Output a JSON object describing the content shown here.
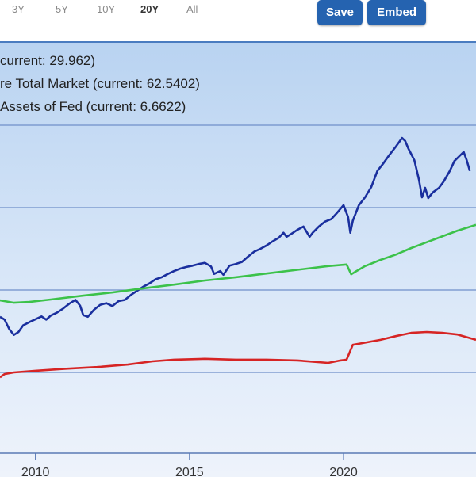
{
  "range_selector": {
    "options": [
      {
        "label": "3Y",
        "active": false
      },
      {
        "label": "5Y",
        "active": false
      },
      {
        "label": "10Y",
        "active": false
      },
      {
        "label": "20Y",
        "active": true
      },
      {
        "label": "All",
        "active": false
      }
    ]
  },
  "toolbar": {
    "save_label": "Save",
    "embed_label": "Embed"
  },
  "legend": [
    "current: 29.962)",
    "re Total Market (current: 62.5402)",
    "Assets of Fed (current: 6.6622)"
  ],
  "colors": {
    "button_bg": "#2563b0",
    "series_blue": "#1a2f9e",
    "series_green": "#3cc24a",
    "series_red": "#d62424",
    "gridline": "#6f8fc9"
  },
  "chart_data": {
    "type": "line",
    "xlabel": "",
    "ylabel": "",
    "xlim": [
      2008.85,
      2024.3
    ],
    "ylim": [
      0,
      100
    ],
    "y_gridlines": [
      20,
      40,
      60,
      80
    ],
    "grid": true,
    "x_ticks": [
      {
        "value": 2010,
        "label": "2010"
      },
      {
        "value": 2015,
        "label": "2015"
      },
      {
        "value": 2020,
        "label": "2020"
      }
    ],
    "series": [
      {
        "color": "#1a2f9e",
        "points": [
          [
            2008.85,
            33.5
          ],
          [
            2009.0,
            32.8
          ],
          [
            2009.15,
            30.5
          ],
          [
            2009.3,
            29.1
          ],
          [
            2009.45,
            29.8
          ],
          [
            2009.6,
            31.4
          ],
          [
            2009.8,
            32.2
          ],
          [
            2010.0,
            32.9
          ],
          [
            2010.2,
            33.6
          ],
          [
            2010.35,
            32.8
          ],
          [
            2010.5,
            33.8
          ],
          [
            2010.7,
            34.5
          ],
          [
            2010.9,
            35.5
          ],
          [
            2011.1,
            36.7
          ],
          [
            2011.3,
            37.6
          ],
          [
            2011.45,
            36.2
          ],
          [
            2011.55,
            33.9
          ],
          [
            2011.7,
            33.5
          ],
          [
            2011.9,
            35.2
          ],
          [
            2012.1,
            36.4
          ],
          [
            2012.3,
            36.8
          ],
          [
            2012.5,
            36.1
          ],
          [
            2012.7,
            37.3
          ],
          [
            2012.9,
            37.6
          ],
          [
            2013.1,
            38.8
          ],
          [
            2013.3,
            39.8
          ],
          [
            2013.5,
            40.8
          ],
          [
            2013.7,
            41.6
          ],
          [
            2013.9,
            42.6
          ],
          [
            2014.1,
            43.1
          ],
          [
            2014.3,
            43.9
          ],
          [
            2014.5,
            44.6
          ],
          [
            2014.7,
            45.2
          ],
          [
            2014.9,
            45.6
          ],
          [
            2015.1,
            45.9
          ],
          [
            2015.3,
            46.3
          ],
          [
            2015.5,
            46.6
          ],
          [
            2015.7,
            45.7
          ],
          [
            2015.8,
            43.9
          ],
          [
            2016.0,
            44.6
          ],
          [
            2016.1,
            43.7
          ],
          [
            2016.3,
            45.9
          ],
          [
            2016.5,
            46.3
          ],
          [
            2016.7,
            46.8
          ],
          [
            2016.9,
            48.1
          ],
          [
            2017.1,
            49.3
          ],
          [
            2017.3,
            50.0
          ],
          [
            2017.5,
            50.8
          ],
          [
            2017.7,
            51.8
          ],
          [
            2017.9,
            52.7
          ],
          [
            2018.05,
            53.9
          ],
          [
            2018.15,
            52.9
          ],
          [
            2018.3,
            53.6
          ],
          [
            2018.5,
            54.6
          ],
          [
            2018.7,
            55.4
          ],
          [
            2018.9,
            52.9
          ],
          [
            2019.0,
            53.9
          ],
          [
            2019.2,
            55.4
          ],
          [
            2019.4,
            56.6
          ],
          [
            2019.6,
            57.2
          ],
          [
            2019.8,
            58.8
          ],
          [
            2020.0,
            60.6
          ],
          [
            2020.15,
            57.7
          ],
          [
            2020.22,
            53.9
          ],
          [
            2020.3,
            56.8
          ],
          [
            2020.5,
            60.6
          ],
          [
            2020.7,
            62.5
          ],
          [
            2020.9,
            65.0
          ],
          [
            2021.1,
            68.9
          ],
          [
            2021.3,
            70.8
          ],
          [
            2021.5,
            72.9
          ],
          [
            2021.7,
            74.8
          ],
          [
            2021.9,
            76.9
          ],
          [
            2022.0,
            76.2
          ],
          [
            2022.1,
            74.4
          ],
          [
            2022.3,
            71.5
          ],
          [
            2022.45,
            66.7
          ],
          [
            2022.55,
            62.5
          ],
          [
            2022.65,
            64.8
          ],
          [
            2022.75,
            62.3
          ],
          [
            2022.9,
            63.7
          ],
          [
            2023.1,
            64.8
          ],
          [
            2023.25,
            66.3
          ],
          [
            2023.45,
            68.9
          ],
          [
            2023.6,
            71.3
          ],
          [
            2023.75,
            72.4
          ],
          [
            2023.9,
            73.5
          ],
          [
            2024.0,
            71.5
          ],
          [
            2024.1,
            68.9
          ]
        ]
      },
      {
        "color": "#3cc24a",
        "points": [
          [
            2008.85,
            37.5
          ],
          [
            2009.3,
            36.9
          ],
          [
            2009.8,
            37.1
          ],
          [
            2010.5,
            37.7
          ],
          [
            2011.5,
            38.6
          ],
          [
            2012.5,
            39.4
          ],
          [
            2013.5,
            40.4
          ],
          [
            2014.5,
            41.3
          ],
          [
            2015.5,
            42.3
          ],
          [
            2016.5,
            43.1
          ],
          [
            2017.5,
            44.0
          ],
          [
            2018.5,
            44.9
          ],
          [
            2019.5,
            45.8
          ],
          [
            2020.1,
            46.2
          ],
          [
            2020.25,
            43.8
          ],
          [
            2020.4,
            44.5
          ],
          [
            2020.7,
            45.8
          ],
          [
            2021.2,
            47.3
          ],
          [
            2021.7,
            48.6
          ],
          [
            2022.2,
            50.2
          ],
          [
            2022.7,
            51.6
          ],
          [
            2023.2,
            53.0
          ],
          [
            2023.7,
            54.4
          ],
          [
            2024.3,
            55.8
          ]
        ]
      },
      {
        "color": "#d62424",
        "points": [
          [
            2008.85,
            18.8
          ],
          [
            2009.0,
            19.6
          ],
          [
            2009.3,
            20.0
          ],
          [
            2010.0,
            20.4
          ],
          [
            2011.0,
            20.9
          ],
          [
            2012.0,
            21.3
          ],
          [
            2013.0,
            21.9
          ],
          [
            2013.8,
            22.7
          ],
          [
            2014.5,
            23.1
          ],
          [
            2015.5,
            23.3
          ],
          [
            2016.5,
            23.1
          ],
          [
            2017.5,
            23.1
          ],
          [
            2018.5,
            22.9
          ],
          [
            2019.5,
            22.3
          ],
          [
            2019.9,
            22.9
          ],
          [
            2020.1,
            23.1
          ],
          [
            2020.3,
            26.7
          ],
          [
            2020.6,
            27.1
          ],
          [
            2021.2,
            27.9
          ],
          [
            2021.7,
            28.8
          ],
          [
            2022.2,
            29.6
          ],
          [
            2022.7,
            29.8
          ],
          [
            2023.2,
            29.6
          ],
          [
            2023.7,
            29.2
          ],
          [
            2024.3,
            27.9
          ]
        ]
      }
    ]
  }
}
